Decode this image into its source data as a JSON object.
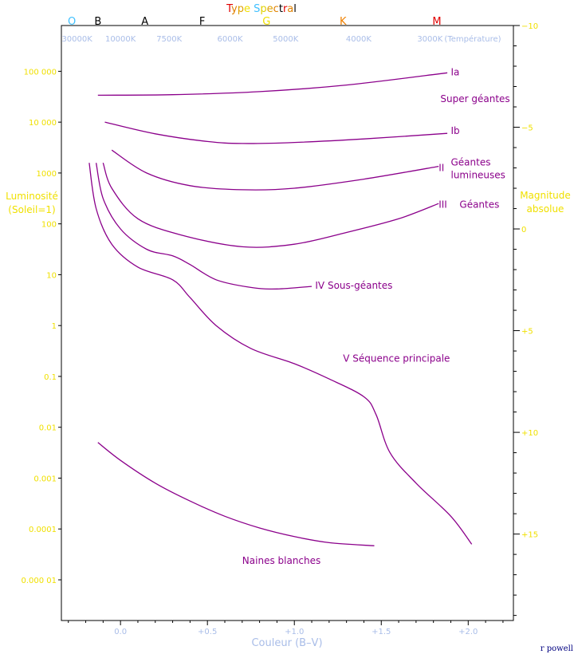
{
  "chart_data": {
    "type": "line",
    "title_letters": [
      {
        "ch": "T",
        "color": "#e00000"
      },
      {
        "ch": "y",
        "color": "#e08000"
      },
      {
        "ch": "p",
        "color": "#e0a000"
      },
      {
        "ch": "e",
        "color": "#f0e000"
      },
      {
        "ch": " ",
        "color": "#000000"
      },
      {
        "ch": "S",
        "color": "#40c0ff"
      },
      {
        "ch": "p",
        "color": "#e0d000"
      },
      {
        "ch": "e",
        "color": "#e0a000"
      },
      {
        "ch": "c",
        "color": "#e08000"
      },
      {
        "ch": "t",
        "color": "#000000"
      },
      {
        "ch": "r",
        "color": "#e00000"
      },
      {
        "ch": "a",
        "color": "#e08000"
      },
      {
        "ch": "l",
        "color": "#000000"
      }
    ],
    "spectral_classes": [
      {
        "label": "O",
        "bv": -0.28,
        "color": "#40c0ff"
      },
      {
        "label": "B",
        "bv": -0.13,
        "color": "#000000"
      },
      {
        "label": "A",
        "bv": 0.14,
        "color": "#000000"
      },
      {
        "label": "F",
        "bv": 0.47,
        "color": "#000000"
      },
      {
        "label": "G",
        "bv": 0.84,
        "color": "#f0e000"
      },
      {
        "label": "K",
        "bv": 1.28,
        "color": "#f08000"
      },
      {
        "label": "M",
        "bv": 1.82,
        "color": "#e00000"
      }
    ],
    "temperature_ticks": [
      {
        "label": "30000K",
        "bv": -0.25
      },
      {
        "label": "10000K",
        "bv": 0.0
      },
      {
        "label": "7500K",
        "bv": 0.28
      },
      {
        "label": "6000K",
        "bv": 0.63
      },
      {
        "label": "5000K",
        "bv": 0.95
      },
      {
        "label": "4000K",
        "bv": 1.37
      },
      {
        "label": "3000K",
        "bv": 1.78
      }
    ],
    "temperature_axis_label": "(Température)",
    "xlabel": "Couleur (B–V)",
    "xlim": [
      -0.34,
      2.26
    ],
    "x_ticks": [
      {
        "value": 0.0,
        "label": "0.0"
      },
      {
        "value": 0.5,
        "label": "+0.5"
      },
      {
        "value": 1.0,
        "label": "+1.0"
      },
      {
        "value": 1.5,
        "label": "+1.5"
      },
      {
        "value": 2.0,
        "label": "+2.0"
      }
    ],
    "ylabel_left": [
      "Luminosité",
      "(Soleil=1)"
    ],
    "ylim_log10_luminosity": [
      -5.8,
      5.9
    ],
    "y_ticks_left": [
      {
        "value": 100000,
        "label": "100 000"
      },
      {
        "value": 10000,
        "label": "10 000"
      },
      {
        "value": 1000,
        "label": "1000"
      },
      {
        "value": 100,
        "label": "100"
      },
      {
        "value": 10,
        "label": "10"
      },
      {
        "value": 1,
        "label": "1"
      },
      {
        "value": 0.1,
        "label": "0.1"
      },
      {
        "value": 0.01,
        "label": "0.01"
      },
      {
        "value": 0.001,
        "label": "0.001"
      },
      {
        "value": 0.0001,
        "label": "0.0001"
      },
      {
        "value": 1e-05,
        "label": "0.000 01"
      }
    ],
    "ylabel_right": [
      "Magnitude",
      "absolue"
    ],
    "y_ticks_right": [
      {
        "value": -10,
        "label": "−10"
      },
      {
        "value": -5,
        "label": "−5"
      },
      {
        "value": 0,
        "label": "0"
      },
      {
        "value": 5,
        "label": "+5"
      },
      {
        "value": 10,
        "label": "+10"
      },
      {
        "value": 15,
        "label": "+15"
      }
    ],
    "series": [
      {
        "name": "Ia",
        "x": [
          -0.13,
          0.3,
          0.8,
          1.3,
          1.88
        ],
        "y": [
          4.53,
          4.54,
          4.6,
          4.73,
          4.97
        ]
      },
      {
        "name": "Ib",
        "x": [
          -0.09,
          0.2,
          0.5,
          0.7,
          1.0,
          1.4,
          1.88
        ],
        "y": [
          4.0,
          3.77,
          3.62,
          3.58,
          3.6,
          3.67,
          3.78
        ]
      },
      {
        "name": "II",
        "x": [
          -0.05,
          0.15,
          0.4,
          0.7,
          1.0,
          1.4,
          1.83
        ],
        "y": [
          3.45,
          3.0,
          2.75,
          2.67,
          2.7,
          2.88,
          3.13
        ]
      },
      {
        "name": "III",
        "x": [
          -0.1,
          -0.05,
          0.1,
          0.35,
          0.7,
          1.0,
          1.3,
          1.6,
          1.83
        ],
        "y": [
          3.2,
          2.7,
          2.1,
          1.78,
          1.55,
          1.6,
          1.83,
          2.1,
          2.4
        ]
      },
      {
        "name": "IV",
        "x": [
          -0.14,
          -0.1,
          0.0,
          0.15,
          0.3,
          0.4,
          0.55,
          0.75,
          0.9,
          1.1
        ],
        "y": [
          3.2,
          2.5,
          1.9,
          1.5,
          1.37,
          1.2,
          0.9,
          0.75,
          0.72,
          0.77
        ]
      },
      {
        "name": "V",
        "x": [
          -0.18,
          -0.14,
          -0.05,
          0.1,
          0.3,
          0.4,
          0.55,
          0.75,
          1.0,
          1.2,
          1.4,
          1.47,
          1.55,
          1.7,
          1.9,
          2.02
        ],
        "y": [
          3.2,
          2.3,
          1.6,
          1.15,
          0.9,
          0.55,
          0.0,
          -0.45,
          -0.75,
          -1.05,
          -1.4,
          -1.75,
          -2.5,
          -3.1,
          -3.75,
          -4.3
        ]
      },
      {
        "name": "Naines blanches",
        "x": [
          -0.13,
          0.0,
          0.2,
          0.4,
          0.6,
          0.8,
          1.0,
          1.2,
          1.46
        ],
        "y": [
          -2.3,
          -2.65,
          -3.1,
          -3.45,
          -3.75,
          -3.98,
          -4.15,
          -4.27,
          -4.33
        ]
      }
    ],
    "annotations": [
      {
        "id": "ia",
        "text": "Ia",
        "bv": 1.9,
        "logL": 4.98,
        "anchor": "start"
      },
      {
        "id": "super",
        "text": "Super géantes",
        "bv": 1.84,
        "logL": 4.46,
        "anchor": "start"
      },
      {
        "id": "ib",
        "text": "Ib",
        "bv": 1.9,
        "logL": 3.83,
        "anchor": "start"
      },
      {
        "id": "ii",
        "text": "II",
        "bv": 1.83,
        "logL": 3.1,
        "anchor": "start"
      },
      {
        "id": "geantes-lum-1",
        "text": "Géantes",
        "bv": 1.9,
        "logL": 3.21,
        "anchor": "start"
      },
      {
        "id": "geantes-lum-2",
        "text": "lumineuses",
        "bv": 1.9,
        "logL": 2.96,
        "anchor": "start"
      },
      {
        "id": "iii",
        "text": "III",
        "bv": 1.83,
        "logL": 2.38,
        "anchor": "start"
      },
      {
        "id": "geantes",
        "text": "Géantes",
        "bv": 1.95,
        "logL": 2.38,
        "anchor": "start"
      },
      {
        "id": "iv",
        "text": "IV Sous-géantes",
        "bv": 1.12,
        "logL": 0.79,
        "anchor": "start"
      },
      {
        "id": "v",
        "text": "V Séquence principale",
        "bv": 1.28,
        "logL": -0.65,
        "anchor": "start"
      },
      {
        "id": "wd",
        "text": "Naines blanches",
        "bv": 0.7,
        "logL": -4.62,
        "anchor": "start"
      }
    ],
    "credit": "r powell",
    "grid": false
  }
}
